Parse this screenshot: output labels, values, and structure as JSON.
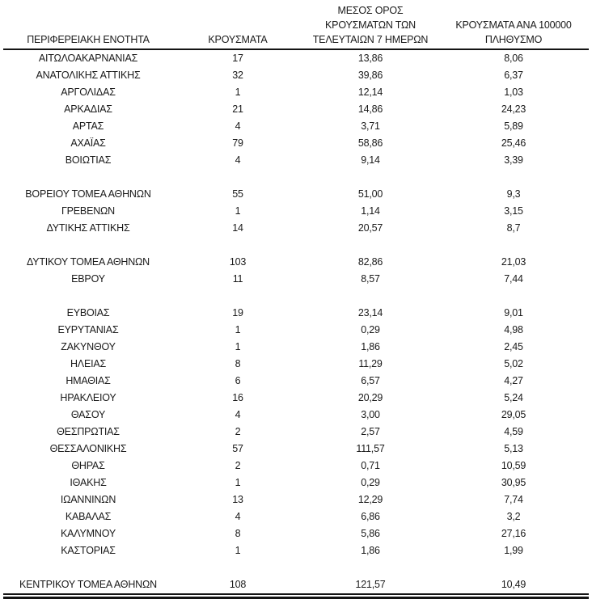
{
  "colors": {
    "background": "#ffffff",
    "text": "#1a1a1a",
    "rule": "#141414"
  },
  "table": {
    "headers": {
      "region": "ΠΕΡΙΦΕΡΕΙΑΚΗ ΕΝΟΤΗΤΑ",
      "cases": "ΚΡΟΥΣΜΑΤΑ",
      "avg7_lines": [
        "ΜΕΣΟΣ ΟΡΟΣ",
        "ΚΡΟΥΣΜΑΤΩΝ ΤΩΝ",
        "ΤΕΛΕΥΤΑΙΩΝ 7 ΗΜΕΡΩΝ"
      ],
      "per100k_lines": [
        "ΚΡΟΥΣΜΑΤΑ ΑΝΑ 100000",
        "ΠΛΗΘΥΣΜΟ"
      ]
    },
    "rows": [
      {
        "region": "ΑΙΤΩΛΟΑΚΑΡΝΑΝΙΑΣ",
        "cases": "17",
        "avg7": "13,86",
        "per100k": "8,06"
      },
      {
        "region": "ΑΝΑΤΟΛΙΚΗΣ ΑΤΤΙΚΗΣ",
        "cases": "32",
        "avg7": "39,86",
        "per100k": "6,37"
      },
      {
        "region": "ΑΡΓΟΛΙΔΑΣ",
        "cases": "1",
        "avg7": "12,14",
        "per100k": "1,03"
      },
      {
        "region": "ΑΡΚΑΔΙΑΣ",
        "cases": "21",
        "avg7": "14,86",
        "per100k": "24,23"
      },
      {
        "region": "ΑΡΤΑΣ",
        "cases": "4",
        "avg7": "3,71",
        "per100k": "5,89"
      },
      {
        "region": "ΑΧΑΪΑΣ",
        "cases": "79",
        "avg7": "58,86",
        "per100k": "25,46"
      },
      {
        "region": "ΒΟΙΩΤΙΑΣ",
        "cases": "4",
        "avg7": "9,14",
        "per100k": "3,39"
      },
      {
        "spacer": true
      },
      {
        "region": "ΒΟΡΕΙΟΥ ΤΟΜΕΑ ΑΘΗΝΩΝ",
        "cases": "55",
        "avg7": "51,00",
        "per100k": "9,3"
      },
      {
        "region": "ΓΡΕΒΕΝΩΝ",
        "cases": "1",
        "avg7": "1,14",
        "per100k": "3,15"
      },
      {
        "region": "ΔΥΤΙΚΗΣ ΑΤΤΙΚΗΣ",
        "cases": "14",
        "avg7": "20,57",
        "per100k": "8,7"
      },
      {
        "spacer": true
      },
      {
        "region": "ΔΥΤΙΚΟΥ ΤΟΜΕΑ ΑΘΗΝΩΝ",
        "cases": "103",
        "avg7": "82,86",
        "per100k": "21,03"
      },
      {
        "region": "ΕΒΡΟΥ",
        "cases": "11",
        "avg7": "8,57",
        "per100k": "7,44"
      },
      {
        "spacer": true
      },
      {
        "region": "ΕΥΒΟΙΑΣ",
        "cases": "19",
        "avg7": "23,14",
        "per100k": "9,01"
      },
      {
        "region": "ΕΥΡΥΤΑΝΙΑΣ",
        "cases": "1",
        "avg7": "0,29",
        "per100k": "4,98"
      },
      {
        "region": "ΖΑΚΥΝΘΟΥ",
        "cases": "1",
        "avg7": "1,86",
        "per100k": "2,45"
      },
      {
        "region": "ΗΛΕΙΑΣ",
        "cases": "8",
        "avg7": "11,29",
        "per100k": "5,02"
      },
      {
        "region": "ΗΜΑΘΙΑΣ",
        "cases": "6",
        "avg7": "6,57",
        "per100k": "4,27"
      },
      {
        "region": "ΗΡΑΚΛΕΙΟΥ",
        "cases": "16",
        "avg7": "20,29",
        "per100k": "5,24"
      },
      {
        "region": "ΘΑΣΟΥ",
        "cases": "4",
        "avg7": "3,00",
        "per100k": "29,05"
      },
      {
        "region": "ΘΕΣΠΡΩΤΙΑΣ",
        "cases": "2",
        "avg7": "2,57",
        "per100k": "4,59"
      },
      {
        "region": "ΘΕΣΣΑΛΟΝΙΚΗΣ",
        "cases": "57",
        "avg7": "111,57",
        "per100k": "5,13"
      },
      {
        "region": "ΘΗΡΑΣ",
        "cases": "2",
        "avg7": "0,71",
        "per100k": "10,59"
      },
      {
        "region": "ΙΘΑΚΗΣ",
        "cases": "1",
        "avg7": "0,29",
        "per100k": "30,95"
      },
      {
        "region": "ΙΩΑΝΝΙΝΩΝ",
        "cases": "13",
        "avg7": "12,29",
        "per100k": "7,74"
      },
      {
        "region": "ΚΑΒΑΛΑΣ",
        "cases": "4",
        "avg7": "6,86",
        "per100k": "3,2"
      },
      {
        "region": "ΚΑΛΥΜΝΟΥ",
        "cases": "8",
        "avg7": "5,86",
        "per100k": "27,16"
      },
      {
        "region": "ΚΑΣΤΟΡΙΑΣ",
        "cases": "1",
        "avg7": "1,86",
        "per100k": "1,99"
      },
      {
        "spacer": true
      },
      {
        "region": "ΚΕΝΤΡΙΚΟΥ ΤΟΜΕΑ ΑΘΗΝΩΝ",
        "cases": "108",
        "avg7": "121,57",
        "per100k": "10,49",
        "total": true
      }
    ]
  }
}
